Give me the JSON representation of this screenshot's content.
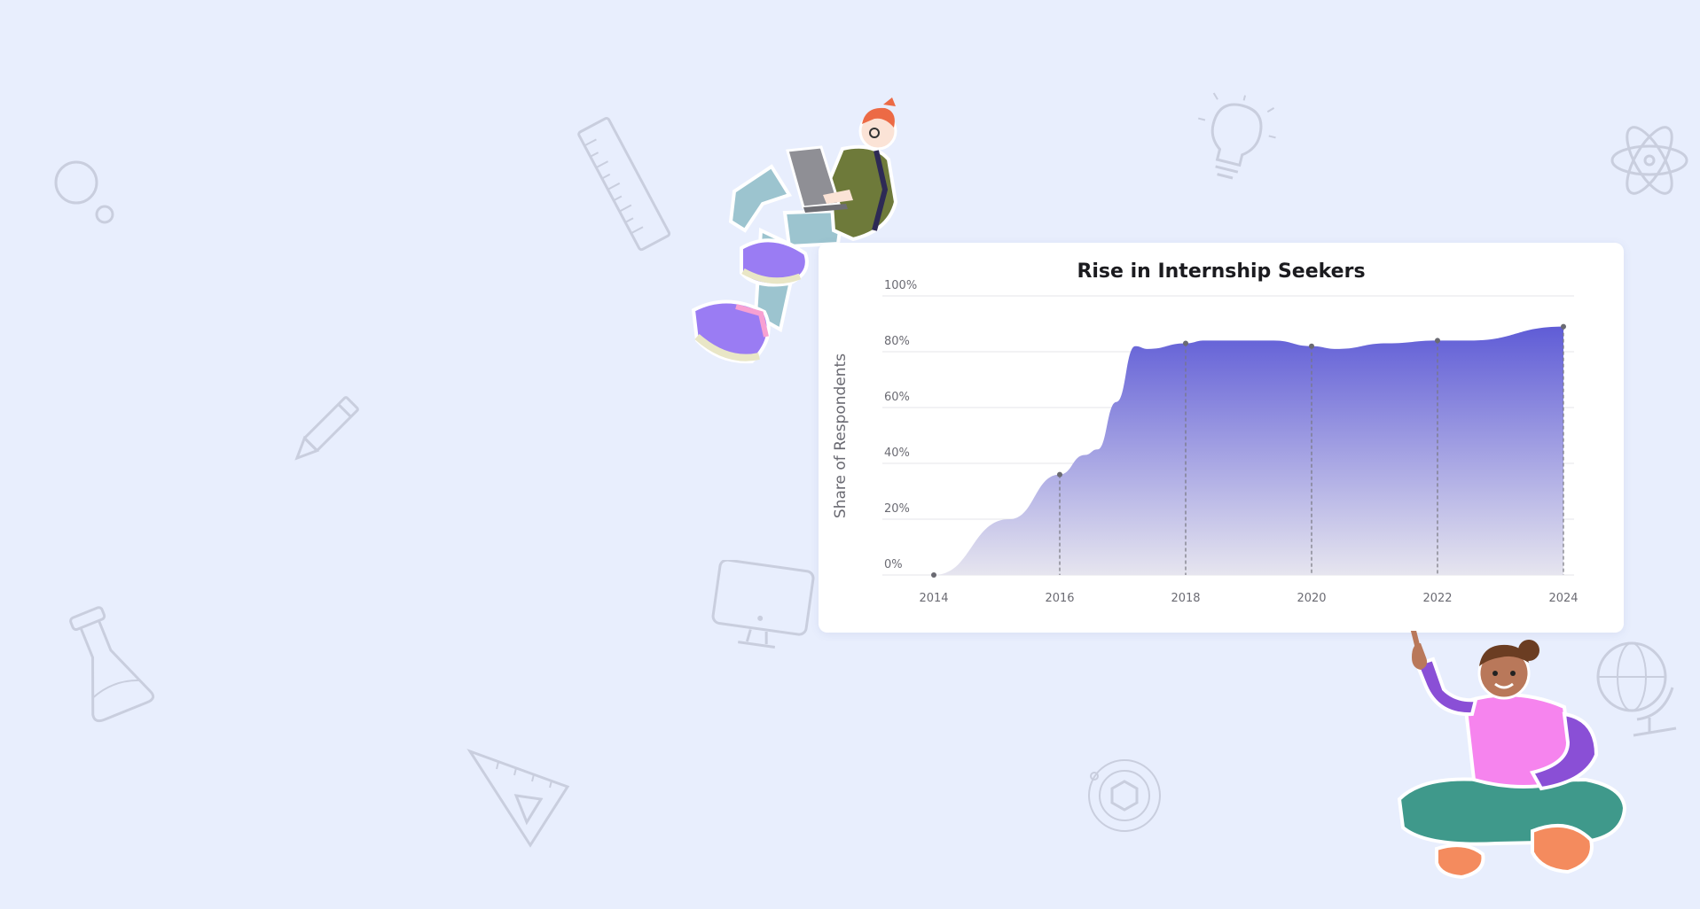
{
  "colors": {
    "background": "#e8eefd",
    "area_top": "#5f5cd6",
    "area_bottom": "#e6e5ef",
    "doodle": "#c9cede"
  },
  "icons": [
    "bubbles-icon",
    "ruler-icon",
    "pencil-icon",
    "flask-icon",
    "set-square-icon",
    "monitor-icon",
    "lightbulb-icon",
    "atom-icon",
    "globe-icon",
    "gear-icon"
  ],
  "illustrations": [
    "person-with-laptop-illustration",
    "person-pointing-illustration"
  ],
  "chart_data": {
    "type": "area",
    "title": "Rise in Internship Seekers",
    "xlabel": "",
    "ylabel": "Share of Respondents",
    "x_ticks": [
      "2014",
      "2016",
      "2018",
      "2020",
      "2022",
      "2024"
    ],
    "y_ticks": [
      "0%",
      "20%",
      "40%",
      "60%",
      "80%",
      "100%"
    ],
    "xlim": [
      2014,
      2024
    ],
    "ylim": [
      0,
      100
    ],
    "grid": true,
    "legend": "none",
    "series": [
      {
        "values": [
          {
            "x": 2014.0,
            "y": 0
          },
          {
            "x": 2015.2,
            "y": 20
          },
          {
            "x": 2016.0,
            "y": 36
          },
          {
            "x": 2016.4,
            "y": 43
          },
          {
            "x": 2016.6,
            "y": 45
          },
          {
            "x": 2016.9,
            "y": 62
          },
          {
            "x": 2017.2,
            "y": 82
          },
          {
            "x": 2017.4,
            "y": 81
          },
          {
            "x": 2018.0,
            "y": 83
          },
          {
            "x": 2018.3,
            "y": 84
          },
          {
            "x": 2019.4,
            "y": 84
          },
          {
            "x": 2020.0,
            "y": 82
          },
          {
            "x": 2020.4,
            "y": 81
          },
          {
            "x": 2021.2,
            "y": 83
          },
          {
            "x": 2022.0,
            "y": 84
          },
          {
            "x": 2022.5,
            "y": 84
          },
          {
            "x": 2024.0,
            "y": 89
          }
        ],
        "markers": [
          {
            "x": 2014,
            "y": 0
          },
          {
            "x": 2016,
            "y": 36
          },
          {
            "x": 2018,
            "y": 83
          },
          {
            "x": 2020,
            "y": 82
          },
          {
            "x": 2022,
            "y": 84
          },
          {
            "x": 2024,
            "y": 89
          }
        ]
      }
    ]
  }
}
